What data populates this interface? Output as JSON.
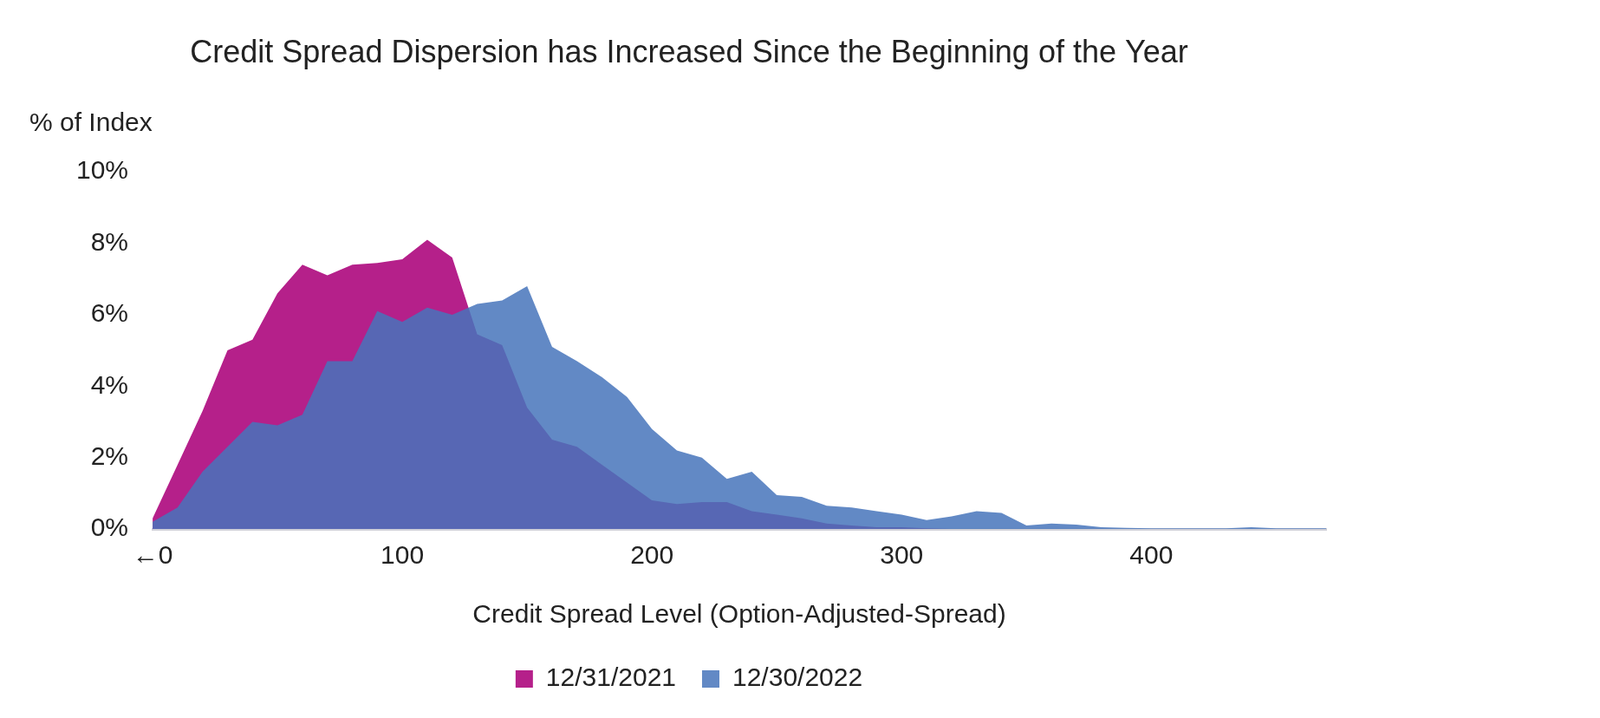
{
  "chart_data": {
    "type": "area",
    "title": "Credit Spread Dispersion has Increased Since the Beginning of the Year",
    "x_label": "Credit Spread Level (Option-Adjusted-Spread)",
    "y_label": "% of Index",
    "x": [
      0,
      10,
      20,
      30,
      40,
      50,
      60,
      70,
      80,
      90,
      100,
      110,
      120,
      130,
      140,
      150,
      160,
      170,
      180,
      190,
      200,
      210,
      220,
      230,
      240,
      250,
      260,
      270,
      280,
      290,
      300,
      310,
      320,
      330,
      340,
      350,
      360,
      370,
      380,
      390,
      400,
      410,
      420,
      430,
      440,
      450,
      460,
      470
    ],
    "series": [
      {
        "name": "12/31/2021",
        "color": "#b5208a",
        "values": [
          0.3,
          1.8,
          3.3,
          5.0,
          5.3,
          6.6,
          7.4,
          7.1,
          7.4,
          7.45,
          7.55,
          8.1,
          7.6,
          5.45,
          5.15,
          3.4,
          2.5,
          2.3,
          1.8,
          1.3,
          0.8,
          0.7,
          0.75,
          0.75,
          0.5,
          0.4,
          0.3,
          0.15,
          0.1,
          0.05,
          0.05,
          0.02,
          0,
          0,
          0,
          0,
          0,
          0,
          0,
          0,
          0,
          0,
          0,
          0,
          0,
          0,
          0,
          0
        ]
      },
      {
        "name": "12/30/2022",
        "color": "#4674bb",
        "values": [
          0.2,
          0.6,
          1.6,
          2.3,
          3.0,
          2.9,
          3.2,
          4.7,
          4.7,
          6.1,
          5.8,
          6.2,
          6.0,
          6.3,
          6.4,
          6.8,
          5.1,
          4.7,
          4.25,
          3.7,
          2.8,
          2.2,
          2.0,
          1.4,
          1.6,
          0.95,
          0.9,
          0.65,
          0.6,
          0.5,
          0.4,
          0.25,
          0.35,
          0.5,
          0.45,
          0.1,
          0.15,
          0.12,
          0.05,
          0.03,
          0.02,
          0.02,
          0.02,
          0.02,
          0.05,
          0.02,
          0.02,
          0.02
        ]
      }
    ],
    "xlim": [
      0,
      470
    ],
    "xticks": [
      {
        "value": 0,
        "label": "←0"
      },
      100,
      200,
      300,
      400
    ],
    "ylim": [
      0,
      10
    ],
    "yticks": [
      {
        "value": 0,
        "label": "0%"
      },
      {
        "value": 2,
        "label": "2%"
      },
      {
        "value": 4,
        "label": "4%"
      },
      {
        "value": 6,
        "label": "6%"
      },
      {
        "value": 8,
        "label": "8%"
      },
      {
        "value": 10,
        "label": "10%"
      }
    ],
    "grid": false,
    "legend": "bottom"
  }
}
